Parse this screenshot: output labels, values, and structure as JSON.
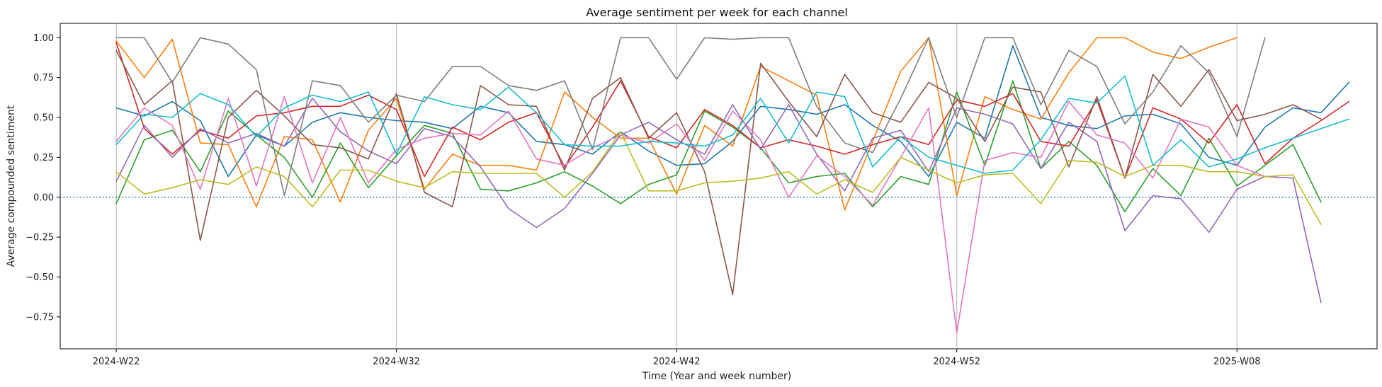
{
  "chart_data": {
    "type": "line",
    "title": "Average sentiment per week for each channel",
    "xlabel": "Time (Year and week number)",
    "ylabel": "Average compounded sentiment",
    "ylim": [
      -0.95,
      1.09
    ],
    "xlim": [
      -2,
      45
    ],
    "x_ticks": [
      {
        "index": 0,
        "label": "2024-W22"
      },
      {
        "index": 10,
        "label": "2024-W32"
      },
      {
        "index": 20,
        "label": "2024-W42"
      },
      {
        "index": 30,
        "label": "2024-W52"
      },
      {
        "index": 40,
        "label": "2025-W08"
      }
    ],
    "y_ticks": [
      1.0,
      0.75,
      0.5,
      0.25,
      0.0,
      -0.25,
      -0.5,
      -0.75
    ],
    "y_tick_labels": [
      "1.00",
      "0.75",
      "0.50",
      "0.25",
      "0.00",
      "−0.25",
      "−0.50",
      "−0.75"
    ],
    "grid": "vertical-at-ticks",
    "reference_line": {
      "y": 0.0,
      "style": "dotted",
      "color": "#1f77b4"
    },
    "series": [
      {
        "color": "#1f77b4",
        "values": [
          0.56,
          0.51,
          0.6,
          0.48,
          0.13,
          0.39,
          0.32,
          0.47,
          0.53,
          0.5,
          0.48,
          0.47,
          0.43,
          0.57,
          0.53,
          0.35,
          0.33,
          0.27,
          0.41,
          0.29,
          0.2,
          0.21,
          0.35,
          0.57,
          0.55,
          0.52,
          0.58,
          0.45,
          0.35,
          0.13,
          0.47,
          0.37,
          0.95,
          0.5,
          0.45,
          0.43,
          0.51,
          0.52,
          0.46,
          0.25,
          0.2,
          0.44,
          0.56,
          0.53,
          0.72
        ]
      },
      {
        "color": "#ff7f0e",
        "values": [
          0.98,
          0.75,
          0.99,
          0.34,
          0.33,
          -0.06,
          0.38,
          0.36,
          -0.03,
          0.42,
          0.62,
          0.05,
          0.27,
          0.2,
          0.2,
          0.17,
          0.66,
          0.5,
          0.37,
          0.37,
          0.02,
          0.45,
          0.32,
          0.82,
          0.73,
          0.64,
          -0.08,
          0.35,
          0.79,
          1.0,
          0.01,
          0.63,
          0.55,
          0.49,
          0.78,
          1.0,
          1.0,
          0.91,
          0.87,
          0.94,
          1.0
        ]
      },
      {
        "color": "#2ca02c",
        "values": [
          -0.04,
          0.36,
          0.42,
          0.16,
          0.54,
          0.39,
          0.25,
          0.0,
          0.34,
          0.06,
          0.26,
          0.45,
          0.4,
          0.05,
          0.04,
          0.09,
          0.16,
          0.07,
          -0.04,
          0.08,
          0.14,
          0.54,
          0.44,
          0.31,
          0.09,
          0.13,
          0.15,
          -0.06,
          0.13,
          0.08,
          0.66,
          0.2,
          0.73,
          0.18,
          0.35,
          0.2,
          -0.09,
          0.18,
          0.01,
          0.37,
          0.07,
          0.2,
          0.33,
          -0.03
        ]
      },
      {
        "color": "#d62728",
        "values": [
          0.97,
          0.43,
          0.27,
          0.42,
          0.37,
          0.51,
          0.53,
          0.57,
          0.57,
          0.64,
          0.55,
          0.13,
          0.44,
          0.36,
          0.47,
          0.53,
          0.19,
          0.44,
          0.73,
          0.38,
          0.31,
          0.55,
          0.45,
          0.31,
          0.36,
          0.32,
          0.27,
          0.33,
          0.38,
          0.33,
          0.61,
          0.57,
          0.65,
          0.35,
          0.32,
          0.61,
          0.12,
          0.56,
          0.49,
          0.34,
          0.58,
          0.21,
          0.37,
          0.48,
          0.6
        ]
      },
      {
        "color": "#9467bd",
        "values": [
          0.1,
          0.45,
          0.25,
          0.43,
          0.34,
          0.4,
          0.32,
          0.62,
          0.41,
          0.29,
          0.21,
          0.43,
          0.38,
          0.19,
          -0.07,
          -0.19,
          -0.07,
          0.15,
          0.39,
          0.47,
          0.36,
          0.27,
          0.58,
          0.3,
          0.58,
          0.27,
          0.04,
          0.37,
          0.42,
          0.16,
          0.56,
          0.52,
          0.46,
          0.18,
          0.47,
          0.35,
          -0.21,
          0.01,
          -0.01,
          -0.22,
          0.05,
          0.13,
          0.12,
          -0.66
        ]
      },
      {
        "color": "#8c564b",
        "values": [
          0.92,
          0.58,
          0.73,
          -0.27,
          0.5,
          0.67,
          0.51,
          0.33,
          0.31,
          0.24,
          0.65,
          0.03,
          -0.06,
          0.7,
          0.58,
          0.57,
          0.17,
          0.62,
          0.75,
          0.37,
          0.53,
          0.16,
          -0.61,
          0.84,
          0.6,
          0.38,
          0.77,
          0.53,
          0.47,
          0.72,
          0.62,
          0.35,
          0.69,
          0.66,
          0.19,
          0.63,
          0.12,
          0.77,
          0.57,
          0.8,
          0.48,
          0.52,
          0.58,
          0.49
        ]
      },
      {
        "color": "#e377c2",
        "values": [
          0.35,
          0.56,
          0.45,
          0.05,
          0.62,
          0.07,
          0.63,
          0.09,
          0.5,
          0.09,
          0.3,
          0.37,
          0.4,
          0.39,
          0.54,
          0.24,
          0.2,
          0.31,
          0.39,
          0.34,
          0.46,
          0.23,
          0.54,
          0.36,
          0.0,
          0.26,
          0.13,
          -0.05,
          0.25,
          0.56,
          -0.85,
          0.23,
          0.28,
          0.25,
          0.6,
          0.39,
          0.34,
          0.12,
          0.49,
          0.44,
          0.2,
          0.13
        ]
      },
      {
        "color": "#7f7f7f",
        "values": [
          1.0,
          1.0,
          0.72,
          1.0,
          0.96,
          0.8,
          0.01,
          0.73,
          0.7,
          0.47,
          0.64,
          0.6,
          0.82,
          0.82,
          0.7,
          0.67,
          0.73,
          0.3,
          1.0,
          1.0,
          0.74,
          1.0,
          0.99,
          1.0,
          1.0,
          0.57,
          0.34,
          0.28,
          0.62,
          1.0,
          0.5,
          1.0,
          1.0,
          0.58,
          0.92,
          0.82,
          0.46,
          0.66,
          0.95,
          0.78,
          0.38,
          1.0
        ]
      },
      {
        "color": "#bcbd22",
        "values": [
          0.16,
          0.02,
          0.06,
          0.11,
          0.08,
          0.19,
          0.13,
          -0.06,
          0.17,
          0.17,
          0.1,
          0.06,
          0.16,
          0.15,
          0.15,
          0.15,
          0.0,
          0.16,
          0.41,
          0.04,
          0.04,
          0.09,
          0.1,
          0.12,
          0.16,
          0.02,
          0.11,
          0.03,
          0.25,
          0.17,
          0.09,
          0.14,
          0.15,
          -0.04,
          0.23,
          0.22,
          0.13,
          0.2,
          0.2,
          0.16,
          0.16,
          0.13,
          0.14,
          -0.17
        ]
      },
      {
        "color": "#17becf",
        "values": [
          0.33,
          0.52,
          0.5,
          0.65,
          0.58,
          0.38,
          0.56,
          0.64,
          0.6,
          0.66,
          0.27,
          0.63,
          0.58,
          0.55,
          0.69,
          0.53,
          0.33,
          0.32,
          0.32,
          0.35,
          0.34,
          0.32,
          0.39,
          0.62,
          0.34,
          0.66,
          0.63,
          0.19,
          0.38,
          0.25,
          0.2,
          0.15,
          0.17,
          0.36,
          0.62,
          0.59,
          0.76,
          0.2,
          0.36,
          0.19,
          0.24,
          0.31,
          0.37,
          0.43,
          0.49
        ]
      }
    ]
  }
}
